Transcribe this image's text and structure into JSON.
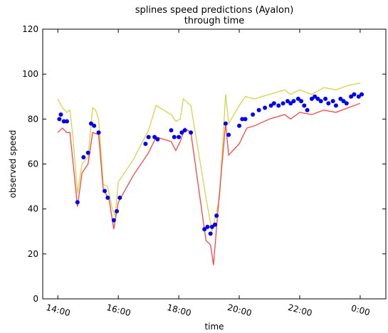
{
  "chart_data": {
    "type": "line",
    "title": "splines speed predictions (Ayalon)",
    "subtitle": "through time",
    "xlabel": "time",
    "ylabel": "observed speed",
    "x_unit": "hours",
    "xlim": [
      13.5,
      24.85
    ],
    "ylim": [
      0,
      120
    ],
    "yticks": [
      0,
      20,
      40,
      60,
      80,
      100,
      120
    ],
    "xticks": [
      {
        "value": 14,
        "label": "14:00"
      },
      {
        "value": 16,
        "label": "16:00"
      },
      {
        "value": 18,
        "label": "18:00"
      },
      {
        "value": 20,
        "label": "20:00"
      },
      {
        "value": 22,
        "label": "22:00"
      },
      {
        "value": 24,
        "label": "0:00"
      }
    ],
    "grid": false,
    "legend": "none",
    "colors": {
      "upper": "#d4d44a",
      "lower": "#ff4444",
      "observed": "#0000ee",
      "axis": "#000000"
    },
    "series": [
      {
        "kind": "line",
        "color": "upper",
        "points": [
          [
            14.0,
            89
          ],
          [
            14.15,
            85
          ],
          [
            14.3,
            83
          ],
          [
            14.4,
            84
          ],
          [
            14.5,
            72
          ],
          [
            14.65,
            47
          ],
          [
            14.8,
            60
          ],
          [
            15.0,
            63
          ],
          [
            15.15,
            85
          ],
          [
            15.25,
            84
          ],
          [
            15.35,
            80
          ],
          [
            15.5,
            51
          ],
          [
            15.65,
            50
          ],
          [
            15.8,
            40
          ],
          [
            15.9,
            37
          ],
          [
            16.0,
            52
          ],
          [
            16.5,
            62
          ],
          [
            17.0,
            75
          ],
          [
            17.25,
            86
          ],
          [
            17.5,
            84
          ],
          [
            17.75,
            82
          ],
          [
            17.9,
            79
          ],
          [
            18.05,
            80
          ],
          [
            18.15,
            89
          ],
          [
            18.4,
            86
          ],
          [
            18.9,
            45
          ],
          [
            19.1,
            30
          ],
          [
            19.35,
            45
          ],
          [
            19.55,
            91
          ],
          [
            19.65,
            78
          ],
          [
            20.0,
            86
          ],
          [
            20.2,
            90
          ],
          [
            20.5,
            89
          ],
          [
            21.0,
            91
          ],
          [
            21.5,
            93
          ],
          [
            21.7,
            91
          ],
          [
            22.0,
            93
          ],
          [
            22.4,
            91
          ],
          [
            22.8,
            94
          ],
          [
            23.2,
            93
          ],
          [
            23.6,
            95
          ],
          [
            24.0,
            96
          ]
        ]
      },
      {
        "kind": "line",
        "color": "lower",
        "points": [
          [
            14.0,
            74
          ],
          [
            14.15,
            76
          ],
          [
            14.3,
            74
          ],
          [
            14.4,
            74
          ],
          [
            14.5,
            61
          ],
          [
            14.65,
            41
          ],
          [
            14.8,
            56
          ],
          [
            15.0,
            60
          ],
          [
            15.15,
            74
          ],
          [
            15.35,
            73
          ],
          [
            15.5,
            49
          ],
          [
            15.7,
            44
          ],
          [
            15.85,
            31
          ],
          [
            16.0,
            43
          ],
          [
            16.5,
            55
          ],
          [
            17.0,
            65
          ],
          [
            17.25,
            72
          ],
          [
            17.5,
            71
          ],
          [
            17.75,
            70
          ],
          [
            17.9,
            66
          ],
          [
            18.05,
            70
          ],
          [
            18.2,
            76
          ],
          [
            18.4,
            74
          ],
          [
            18.9,
            26
          ],
          [
            19.05,
            24
          ],
          [
            19.15,
            15
          ],
          [
            19.3,
            40
          ],
          [
            19.55,
            78
          ],
          [
            19.65,
            64
          ],
          [
            20.0,
            69
          ],
          [
            20.25,
            76
          ],
          [
            20.5,
            77
          ],
          [
            21.0,
            80
          ],
          [
            21.5,
            82
          ],
          [
            21.7,
            80
          ],
          [
            22.0,
            83
          ],
          [
            22.4,
            82
          ],
          [
            22.8,
            84
          ],
          [
            23.2,
            83
          ],
          [
            23.6,
            85
          ],
          [
            24.0,
            87
          ]
        ]
      },
      {
        "kind": "scatter",
        "color": "observed",
        "points": [
          [
            14.05,
            80
          ],
          [
            14.1,
            82
          ],
          [
            14.2,
            79
          ],
          [
            14.3,
            79
          ],
          [
            14.65,
            43
          ],
          [
            14.85,
            63
          ],
          [
            15.0,
            65
          ],
          [
            15.1,
            78
          ],
          [
            15.2,
            77
          ],
          [
            15.35,
            74
          ],
          [
            15.55,
            48
          ],
          [
            15.65,
            45
          ],
          [
            15.85,
            35
          ],
          [
            15.95,
            39
          ],
          [
            16.05,
            45
          ],
          [
            16.9,
            69
          ],
          [
            17.0,
            72
          ],
          [
            17.2,
            72
          ],
          [
            17.3,
            71
          ],
          [
            17.75,
            75
          ],
          [
            17.85,
            72
          ],
          [
            18.0,
            72
          ],
          [
            18.1,
            74
          ],
          [
            18.2,
            75
          ],
          [
            18.4,
            74
          ],
          [
            18.85,
            31
          ],
          [
            18.95,
            32
          ],
          [
            19.05,
            29
          ],
          [
            19.1,
            32
          ],
          [
            19.2,
            33
          ],
          [
            19.25,
            37
          ],
          [
            19.55,
            78
          ],
          [
            19.65,
            73
          ],
          [
            20.0,
            77
          ],
          [
            20.1,
            80
          ],
          [
            20.2,
            80
          ],
          [
            20.45,
            82
          ],
          [
            20.65,
            84
          ],
          [
            20.85,
            85
          ],
          [
            21.05,
            86
          ],
          [
            21.15,
            87
          ],
          [
            21.3,
            86
          ],
          [
            21.45,
            87
          ],
          [
            21.6,
            88
          ],
          [
            21.7,
            87
          ],
          [
            21.8,
            88
          ],
          [
            21.95,
            89
          ],
          [
            22.05,
            88
          ],
          [
            22.15,
            86
          ],
          [
            22.25,
            84
          ],
          [
            22.4,
            89
          ],
          [
            22.5,
            90
          ],
          [
            22.6,
            89
          ],
          [
            22.7,
            88
          ],
          [
            22.85,
            89
          ],
          [
            22.95,
            87
          ],
          [
            23.1,
            88
          ],
          [
            23.2,
            86
          ],
          [
            23.35,
            89
          ],
          [
            23.45,
            88
          ],
          [
            23.55,
            87
          ],
          [
            23.7,
            90
          ],
          [
            23.8,
            91
          ],
          [
            23.95,
            90
          ],
          [
            24.05,
            91
          ]
        ]
      }
    ]
  }
}
